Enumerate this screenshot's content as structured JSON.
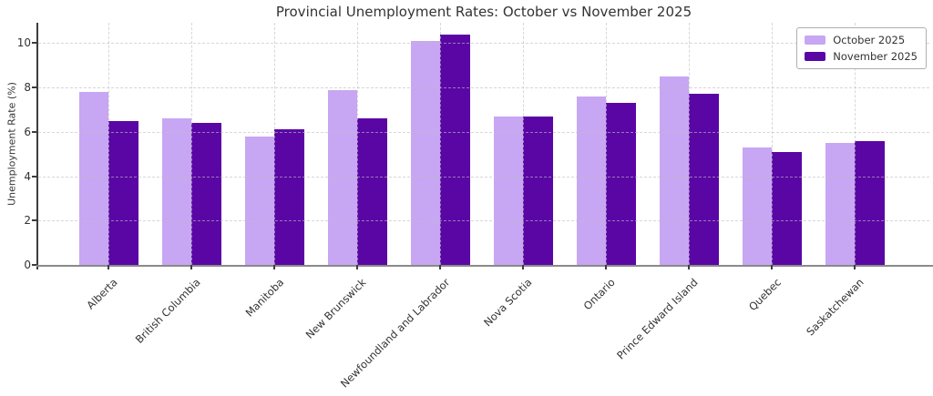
{
  "chart_data": {
    "type": "bar",
    "title": "Provincial Unemployment Rates: October vs November 2025",
    "xlabel": "",
    "ylabel": "Unemployment Rate (%)",
    "categories": [
      "Alberta",
      "British Columbia",
      "Manitoba",
      "New Brunswick",
      "Newfoundland and Labrador",
      "Nova Scotia",
      "Ontario",
      "Prince Edward Island",
      "Quebec",
      "Saskatchewan"
    ],
    "series": [
      {
        "name": "October 2025",
        "color": "#c7a6f3",
        "values": [
          7.8,
          6.6,
          5.8,
          7.9,
          10.1,
          6.7,
          7.6,
          8.5,
          5.3,
          5.5
        ]
      },
      {
        "name": "November 2025",
        "color": "#5a06a5",
        "values": [
          6.5,
          6.4,
          6.1,
          6.6,
          10.4,
          6.7,
          7.3,
          7.7,
          5.1,
          5.6
        ]
      }
    ],
    "ylim": [
      0,
      10.92
    ],
    "yticks": [
      0,
      2,
      4,
      6,
      8,
      10
    ],
    "grid": true,
    "grid_style": "dashed",
    "legend_position": "upper right",
    "colors": {
      "title_text": "#333333",
      "tick_text": "#333333",
      "grid": "#d9d9d9",
      "spine_left": "#3d3d3d",
      "spine_bottom": "#8a8a8a",
      "background": "#ffffff"
    }
  }
}
